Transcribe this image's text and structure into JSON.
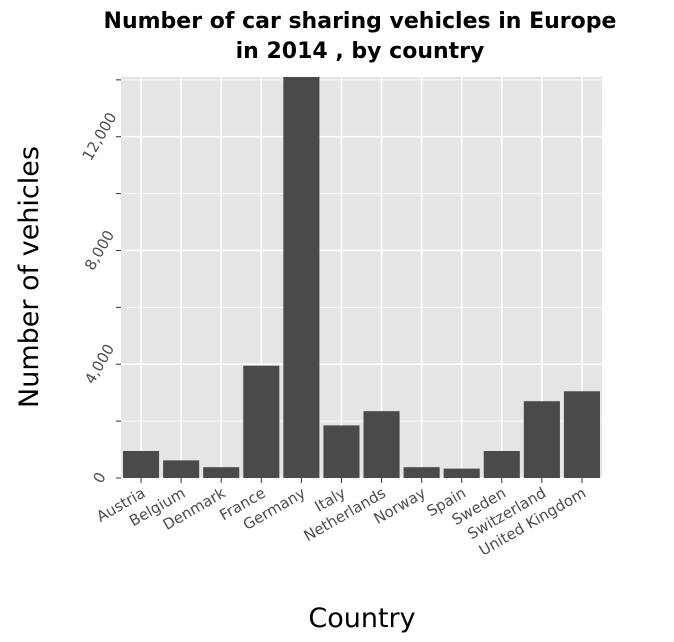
{
  "chart_data": {
    "type": "bar",
    "title_lines": [
      "Number of car sharing vehicles in Europe",
      "in 2014 , by country"
    ],
    "xlabel": "Country",
    "ylabel": "Number of vehicles",
    "categories": [
      "Austria",
      "Belgium",
      "Denmark",
      "France",
      "Germany",
      "Italy",
      "Netherlands",
      "Norway",
      "Spain",
      "Sweden",
      "Switzerland",
      "United Kingdom"
    ],
    "values": [
      950,
      620,
      380,
      3950,
      14100,
      1850,
      2350,
      380,
      330,
      950,
      2700,
      3050
    ],
    "y_ticks": [
      0,
      4000,
      8000,
      12000
    ],
    "y_tick_labels": [
      "0",
      "4,000",
      "8,000",
      "12,000"
    ],
    "ylim": [
      0,
      14100
    ],
    "grid": true,
    "colors": {
      "bar": "#4a4a4a",
      "panel": "#e5e5e5",
      "grid": "#ffffff"
    }
  }
}
